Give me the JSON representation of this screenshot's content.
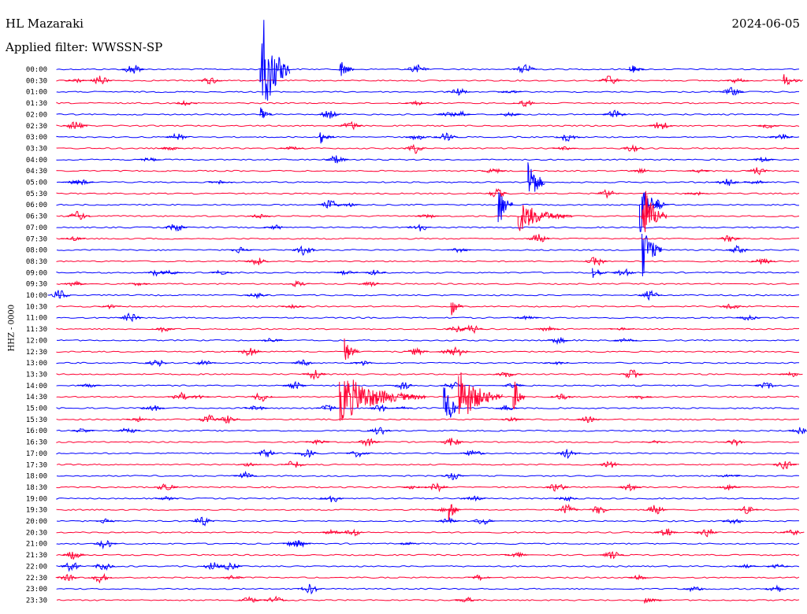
{
  "header": {
    "station": "HL Mazaraki",
    "filter": "Applied filter: WWSSN-SP",
    "date": "2024-06-05"
  },
  "axis": {
    "channel_label": "HHZ - 0000"
  },
  "colors": {
    "even_row": "#0000ff",
    "odd_row": "#ff0033",
    "background": "#ffffff",
    "text": "#000000"
  },
  "chart_data": {
    "type": "line",
    "title": "HL Mazaraki",
    "subtitle": "Applied filter: WWSSN-SP",
    "ylabel": "HHZ - 0000",
    "row_labels": [
      "00:00",
      "00:30",
      "01:00",
      "01:30",
      "02:00",
      "02:30",
      "03:00",
      "03:30",
      "04:00",
      "04:30",
      "05:00",
      "05:30",
      "06:00",
      "06:30",
      "07:00",
      "07:30",
      "08:00",
      "08:30",
      "09:00",
      "09:30",
      "10:00",
      "10:30",
      "11:00",
      "11:30",
      "12:00",
      "12:30",
      "13:00",
      "13:30",
      "14:00",
      "14:30",
      "15:00",
      "15:30",
      "16:00",
      "16:30",
      "17:00",
      "17:30",
      "18:00",
      "18:30",
      "19:00",
      "19:30",
      "20:00",
      "20:30",
      "21:00",
      "21:30",
      "22:00",
      "22:30",
      "23:00",
      "23:30"
    ],
    "minutes_per_row": 30,
    "series_colors": [
      "#0000ff",
      "#ff0033"
    ],
    "events": [
      {
        "row": "00:00",
        "minute": 8.2,
        "amplitude": 88,
        "duration": 1.2,
        "color": "blue"
      },
      {
        "row": "00:00",
        "minute": 11.4,
        "amplitude": 14,
        "duration": 0.6,
        "color": "blue"
      },
      {
        "row": "00:00",
        "minute": 23.1,
        "amplitude": 8,
        "duration": 0.6,
        "color": "blue"
      },
      {
        "row": "00:30",
        "minute": 29.3,
        "amplitude": 9,
        "duration": 0.8,
        "color": "red"
      },
      {
        "row": "02:00",
        "minute": 8.2,
        "amplitude": 10,
        "duration": 0.5,
        "color": "blue"
      },
      {
        "row": "03:00",
        "minute": 10.6,
        "amplitude": 10,
        "duration": 0.6,
        "color": "blue"
      },
      {
        "row": "05:00",
        "minute": 19.0,
        "amplitude": 40,
        "duration": 0.7,
        "color": "blue"
      },
      {
        "row": "06:00",
        "minute": 17.8,
        "amplitude": 34,
        "duration": 0.6,
        "color": "blue"
      },
      {
        "row": "06:00",
        "minute": 23.5,
        "amplitude": 48,
        "duration": 0.8,
        "color": "blue"
      },
      {
        "row": "06:30",
        "minute": 18.6,
        "amplitude": 22,
        "duration": 2.2,
        "color": "red"
      },
      {
        "row": "06:30",
        "minute": 23.6,
        "amplitude": 50,
        "duration": 1.0,
        "color": "red"
      },
      {
        "row": "08:00",
        "minute": 23.6,
        "amplitude": 40,
        "duration": 0.8,
        "color": "blue"
      },
      {
        "row": "09:00",
        "minute": 21.6,
        "amplitude": 10,
        "duration": 0.6,
        "color": "blue"
      },
      {
        "row": "10:30",
        "minute": 15.9,
        "amplitude": 14,
        "duration": 0.5,
        "color": "red"
      },
      {
        "row": "12:30",
        "minute": 11.6,
        "amplitude": 18,
        "duration": 0.6,
        "color": "red"
      },
      {
        "row": "14:30",
        "minute": 11.4,
        "amplitude": 34,
        "duration": 3.5,
        "color": "red"
      },
      {
        "row": "14:30",
        "minute": 16.2,
        "amplitude": 40,
        "duration": 1.8,
        "color": "red"
      },
      {
        "row": "14:30",
        "minute": 18.4,
        "amplitude": 28,
        "duration": 0.5,
        "color": "red"
      },
      {
        "row": "15:00",
        "minute": 15.6,
        "amplitude": 40,
        "duration": 0.6,
        "color": "blue"
      },
      {
        "row": "19:30",
        "minute": 15.8,
        "amplitude": 14,
        "duration": 0.5,
        "color": "red"
      },
      {
        "row": "23:30",
        "minute": 23.7,
        "amplitude": 6,
        "duration": 0.7,
        "color": "red"
      }
    ]
  }
}
